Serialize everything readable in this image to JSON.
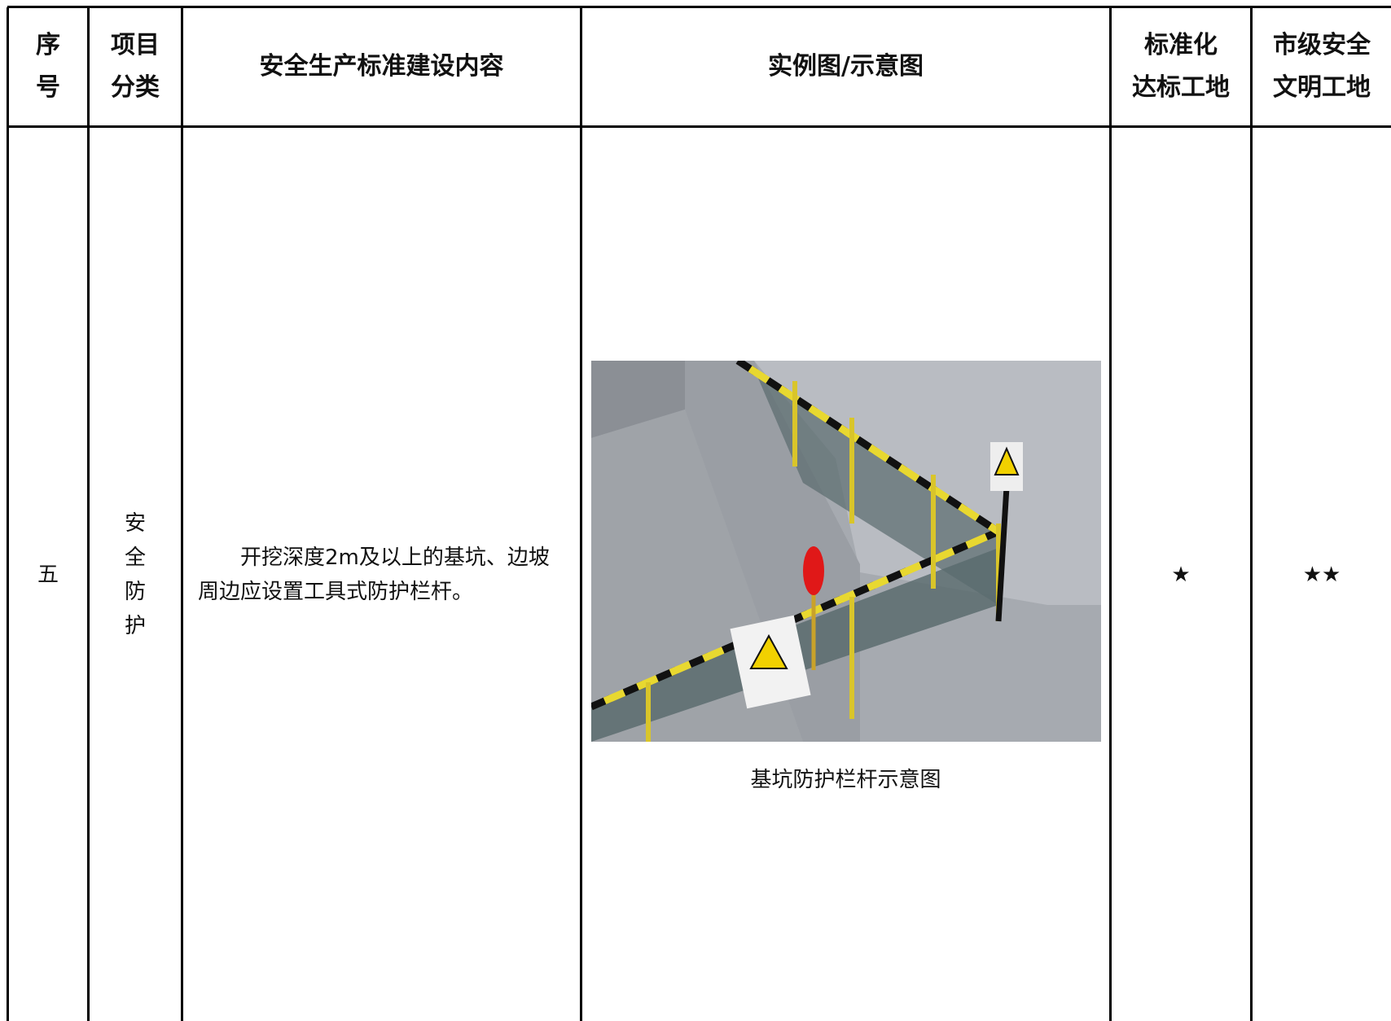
{
  "table": {
    "headers": [
      [
        "序",
        "号"
      ],
      [
        "项目",
        "分类"
      ],
      [
        "安全生产标准建设内容"
      ],
      [
        "实例图/示意图"
      ],
      [
        "标准化",
        "达标工地"
      ],
      [
        "市级安全",
        "文明工地"
      ]
    ],
    "rows": [
      {
        "number": "五",
        "category": [
          "安",
          "全",
          "防",
          "护"
        ],
        "content": "开挖深度2m及以上的基坑、边坡周边应设置工具式防护栏杆。",
        "caption": "基坑防护栏杆示意图",
        "standard": "★",
        "city": "★★"
      }
    ]
  }
}
